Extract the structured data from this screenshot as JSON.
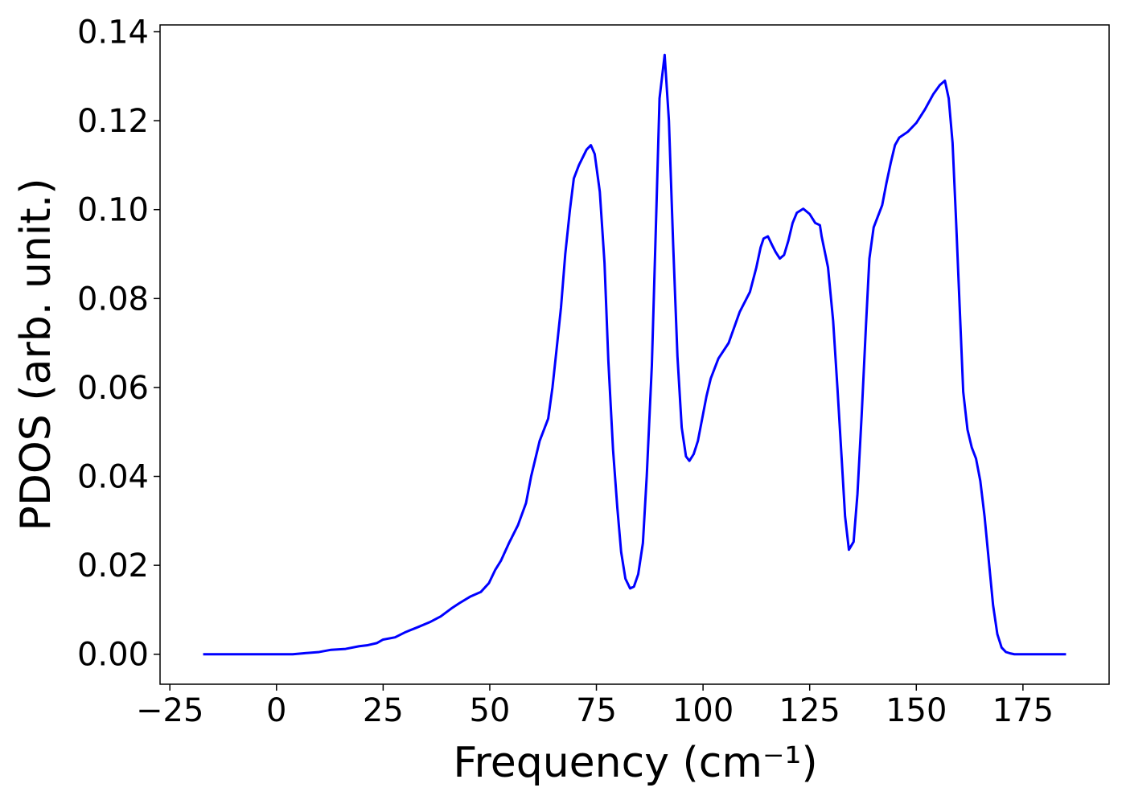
{
  "chart_data": {
    "type": "line",
    "xlabel": "Frequency (cm⁻¹)",
    "ylabel": "PDOS (arb. unit.)",
    "x": [
      -17.2,
      -10,
      0,
      3.8,
      6.2,
      10,
      12.8,
      16.2,
      19.4,
      21.2,
      23.5,
      25,
      27.8,
      30.3,
      32.9,
      35.9,
      38.5,
      41,
      42.9,
      45.5,
      47.9,
      49.8,
      51.3,
      52.6,
      54.5,
      56.6,
      58.5,
      59.7,
      61.7,
      63.7,
      64.7,
      65.6,
      66.7,
      67.7,
      68.8,
      69.7,
      70.9,
      72.7,
      73.7,
      74.6,
      75.8,
      76.9,
      77.8,
      78.9,
      79.9,
      80.8,
      81.8,
      82.9,
      83.8,
      84.8,
      85.9,
      86.8,
      88,
      89,
      89.8,
      91,
      92,
      93,
      94,
      95,
      96,
      96.8,
      97.8,
      98.8,
      99.8,
      100.8,
      101.8,
      103.6,
      106,
      108.6,
      111,
      112.5,
      113.5,
      114.2,
      115.2,
      116.2,
      117,
      118,
      119,
      120,
      121,
      122,
      123.5,
      125,
      126.3,
      127.4,
      127.8,
      129.3,
      130.5,
      131.5,
      132.5,
      133.3,
      134.2,
      135.3,
      136.2,
      137.2,
      138.2,
      139,
      140,
      142,
      143,
      144,
      145,
      146,
      148,
      150,
      152,
      154,
      155.5,
      156.7,
      157.6,
      158.5,
      159.3,
      160.3,
      161,
      162,
      163,
      164,
      165,
      166,
      167,
      168,
      169,
      170,
      171,
      172,
      173,
      185.1
    ],
    "series": [
      {
        "name": "PDOS",
        "color": "#0000ff",
        "values": [
          0,
          0,
          0,
          0,
          0.0002,
          0.0005,
          0.001,
          0.0012,
          0.0018,
          0.002,
          0.0025,
          0.0033,
          0.0038,
          0.005,
          0.006,
          0.0072,
          0.0085,
          0.0103,
          0.0115,
          0.013,
          0.014,
          0.016,
          0.019,
          0.021,
          0.025,
          0.029,
          0.034,
          0.04,
          0.048,
          0.053,
          0.06,
          0.068,
          0.078,
          0.09,
          0.1,
          0.107,
          0.11,
          0.1135,
          0.1145,
          0.1125,
          0.104,
          0.088,
          0.066,
          0.046,
          0.033,
          0.023,
          0.017,
          0.0148,
          0.0152,
          0.018,
          0.025,
          0.04,
          0.065,
          0.098,
          0.125,
          0.1348,
          0.12,
          0.092,
          0.067,
          0.051,
          0.0445,
          0.0435,
          0.045,
          0.048,
          0.053,
          0.058,
          0.062,
          0.0665,
          0.07,
          0.077,
          0.0815,
          0.087,
          0.0915,
          0.0935,
          0.094,
          0.092,
          0.0905,
          0.089,
          0.0898,
          0.093,
          0.097,
          0.0993,
          0.1002,
          0.099,
          0.097,
          0.0965,
          0.094,
          0.087,
          0.075,
          0.06,
          0.044,
          0.031,
          0.0235,
          0.0253,
          0.036,
          0.054,
          0.074,
          0.089,
          0.096,
          0.101,
          0.106,
          0.1105,
          0.1145,
          0.1162,
          0.1175,
          0.1195,
          0.1225,
          0.126,
          0.128,
          0.129,
          0.125,
          0.115,
          0.098,
          0.075,
          0.059,
          0.0505,
          0.0465,
          0.044,
          0.039,
          0.031,
          0.021,
          0.011,
          0.0045,
          0.0015,
          0.0005,
          0.0002,
          0,
          0
        ]
      }
    ],
    "xlim": [
      -27.3,
      195.2
    ],
    "ylim": [
      -0.00674,
      0.14154
    ],
    "xticks": [
      {
        "value": -25,
        "label": "−25"
      },
      0,
      25,
      50,
      75,
      100,
      125,
      150,
      175
    ],
    "yticks": [
      {
        "value": 0,
        "label": "0.00"
      },
      0.02,
      0.04,
      0.06,
      0.08,
      {
        "value": 0.1,
        "label": "0.10"
      },
      0.12,
      0.14
    ],
    "grid": false
  }
}
